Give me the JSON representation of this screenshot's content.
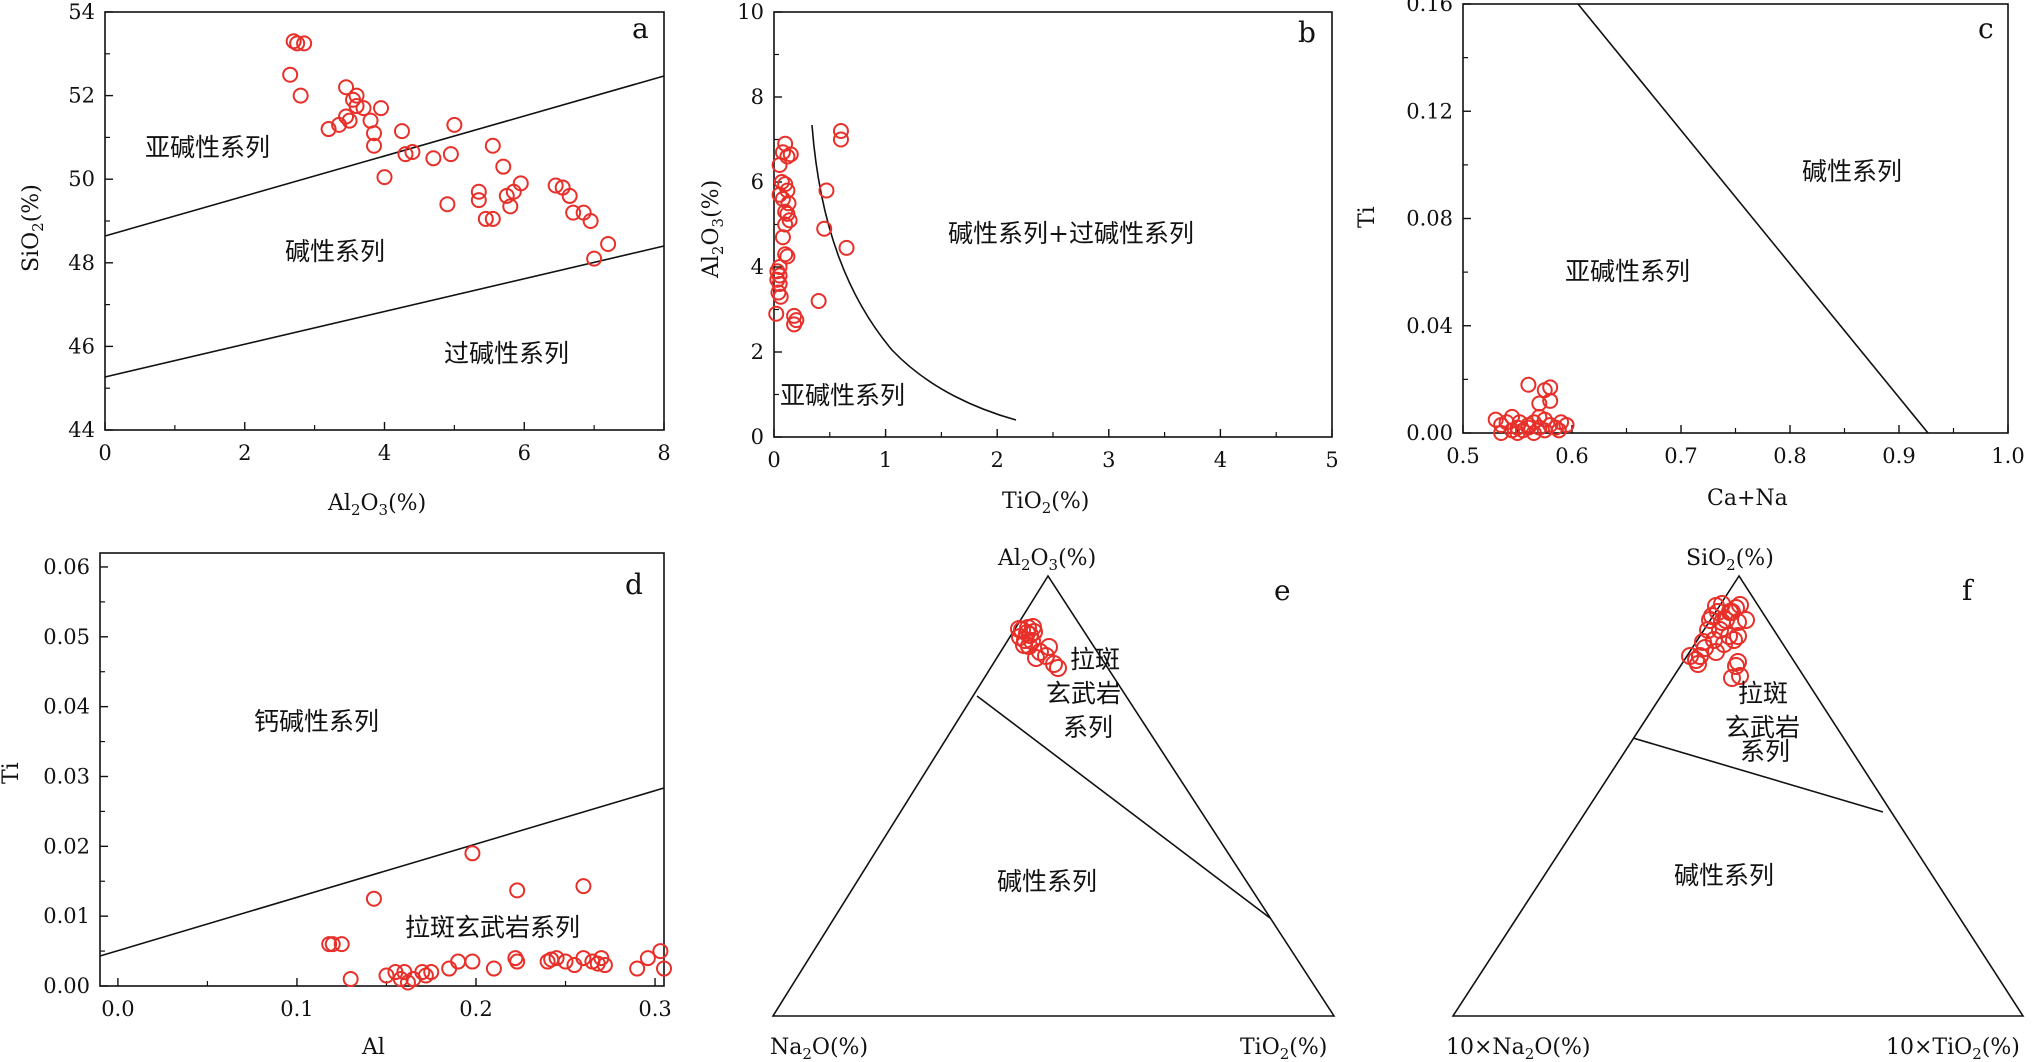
{
  "chart_data": [
    {
      "id": "a",
      "type": "scatter",
      "letter": "a",
      "xlabel": "Al2O3(%)",
      "ylabel": "SiO2(%)",
      "xlim": [
        0,
        8
      ],
      "ylim": [
        44,
        54
      ],
      "xticks": [
        "0",
        "2",
        "4",
        "6",
        "8"
      ],
      "yticks": [
        "44",
        "46",
        "48",
        "50",
        "52",
        "54"
      ],
      "regions": [
        "亚碱性系列",
        "碱性系列",
        "过碱性系列"
      ],
      "points": [
        [
          2.7,
          53.3
        ],
        [
          2.75,
          53.25
        ],
        [
          2.85,
          53.25
        ],
        [
          2.65,
          52.5
        ],
        [
          2.8,
          52.0
        ],
        [
          3.2,
          51.2
        ],
        [
          3.35,
          51.3
        ],
        [
          3.45,
          51.5
        ],
        [
          3.5,
          51.4
        ],
        [
          3.45,
          52.2
        ],
        [
          3.55,
          51.9
        ],
        [
          3.6,
          52.0
        ],
        [
          3.6,
          51.75
        ],
        [
          3.7,
          51.7
        ],
        [
          3.8,
          51.4
        ],
        [
          3.85,
          51.1
        ],
        [
          3.85,
          50.8
        ],
        [
          3.95,
          51.7
        ],
        [
          4.0,
          50.05
        ],
        [
          4.25,
          51.15
        ],
        [
          4.3,
          50.6
        ],
        [
          4.4,
          50.65
        ],
        [
          4.7,
          50.5
        ],
        [
          4.95,
          50.6
        ],
        [
          5.0,
          51.3
        ],
        [
          4.9,
          49.4
        ],
        [
          5.35,
          49.7
        ],
        [
          5.35,
          49.5
        ],
        [
          5.45,
          49.05
        ],
        [
          5.55,
          49.05
        ],
        [
          5.55,
          50.8
        ],
        [
          5.7,
          50.3
        ],
        [
          5.75,
          49.6
        ],
        [
          5.8,
          49.35
        ],
        [
          5.85,
          49.7
        ],
        [
          5.95,
          49.9
        ],
        [
          6.45,
          49.85
        ],
        [
          6.55,
          49.8
        ],
        [
          6.65,
          49.6
        ],
        [
          6.7,
          49.2
        ],
        [
          6.85,
          49.2
        ],
        [
          6.95,
          49.0
        ],
        [
          7.0,
          48.1
        ],
        [
          7.2,
          48.45
        ]
      ]
    },
    {
      "id": "b",
      "type": "scatter",
      "letter": "b",
      "xlabel": "TiO2(%)",
      "ylabel": "Al2O3(%)",
      "xlim": [
        0,
        5
      ],
      "ylim": [
        0,
        10
      ],
      "xticks": [
        "0",
        "1",
        "2",
        "3",
        "4",
        "5"
      ],
      "yticks": [
        "0",
        "2",
        "4",
        "6",
        "8",
        "10"
      ],
      "regions": [
        "碱性系列+过碱性系列",
        "亚碱性系列"
      ],
      "points": [
        [
          0.05,
          6.4
        ],
        [
          0.08,
          6.7
        ],
        [
          0.1,
          6.9
        ],
        [
          0.12,
          6.6
        ],
        [
          0.15,
          6.65
        ],
        [
          0.1,
          5.95
        ],
        [
          0.12,
          5.8
        ],
        [
          0.08,
          5.6
        ],
        [
          0.1,
          5.3
        ],
        [
          0.12,
          5.25
        ],
        [
          0.1,
          5.0
        ],
        [
          0.08,
          4.7
        ],
        [
          0.1,
          4.3
        ],
        [
          0.12,
          4.25
        ],
        [
          0.05,
          4.0
        ],
        [
          0.05,
          3.8
        ],
        [
          0.03,
          3.7
        ],
        [
          0.05,
          3.6
        ],
        [
          0.04,
          3.4
        ],
        [
          0.02,
          2.9
        ],
        [
          0.18,
          2.85
        ],
        [
          0.2,
          2.75
        ],
        [
          0.18,
          2.65
        ],
        [
          0.4,
          3.2
        ],
        [
          0.45,
          4.9
        ],
        [
          0.47,
          5.8
        ],
        [
          0.6,
          7.2
        ],
        [
          0.6,
          7.0
        ],
        [
          0.65,
          4.45
        ],
        [
          0.05,
          5.7
        ],
        [
          0.07,
          6.0
        ],
        [
          0.13,
          5.5
        ],
        [
          0.14,
          5.1
        ],
        [
          0.06,
          3.3
        ],
        [
          0.03,
          3.9
        ]
      ]
    },
    {
      "id": "c",
      "type": "scatter",
      "letter": "c",
      "xlabel": "Ca+Na",
      "ylabel": "Ti",
      "xlim": [
        0.5,
        1.0
      ],
      "ylim": [
        0,
        0.16
      ],
      "xticks": [
        "0.5",
        "0.6",
        "0.7",
        "0.8",
        "0.9",
        "1.0"
      ],
      "yticks": [
        "0.00",
        "0.04",
        "0.08",
        "0.12",
        "0.16"
      ],
      "regions": [
        "碱性系列",
        "亚碱性系列"
      ],
      "points": [
        [
          0.53,
          0.005
        ],
        [
          0.535,
          0.003
        ],
        [
          0.54,
          0.004
        ],
        [
          0.545,
          0.006
        ],
        [
          0.55,
          0.002
        ],
        [
          0.555,
          0.001
        ],
        [
          0.56,
          0.003
        ],
        [
          0.565,
          0.004
        ],
        [
          0.57,
          0.002
        ],
        [
          0.575,
          0.005
        ],
        [
          0.58,
          0.003
        ],
        [
          0.585,
          0.002
        ],
        [
          0.59,
          0.004
        ],
        [
          0.595,
          0.003
        ],
        [
          0.56,
          0.018
        ],
        [
          0.575,
          0.016
        ],
        [
          0.58,
          0.017
        ],
        [
          0.57,
          0.011
        ],
        [
          0.58,
          0.012
        ],
        [
          0.545,
          0.001
        ],
        [
          0.55,
          0.0
        ],
        [
          0.565,
          0.0
        ],
        [
          0.575,
          0.001
        ],
        [
          0.588,
          0.001
        ],
        [
          0.535,
          0.0
        ],
        [
          0.57,
          0.006
        ],
        [
          0.56,
          0.002
        ],
        [
          0.552,
          0.004
        ]
      ]
    },
    {
      "id": "d",
      "type": "scatter",
      "letter": "d",
      "xlabel": "Al",
      "ylabel": "Ti",
      "xlim": [
        -0.01,
        0.305
      ],
      "ylim": [
        0,
        0.062
      ],
      "xticks": [
        "0.0",
        "0.1",
        "0.2",
        "0.3"
      ],
      "yticks": [
        "0.00",
        "0.01",
        "0.02",
        "0.03",
        "0.04",
        "0.05",
        "0.06"
      ],
      "regions": [
        "钙碱性系列",
        "拉斑玄武岩系列"
      ],
      "points": [
        [
          0.12,
          0.006
        ],
        [
          0.125,
          0.006
        ],
        [
          0.118,
          0.006
        ],
        [
          0.13,
          0.001
        ],
        [
          0.143,
          0.0125
        ],
        [
          0.15,
          0.0015
        ],
        [
          0.155,
          0.002
        ],
        [
          0.158,
          0.001
        ],
        [
          0.16,
          0.002
        ],
        [
          0.162,
          0.0005
        ],
        [
          0.165,
          0.001
        ],
        [
          0.17,
          0.002
        ],
        [
          0.172,
          0.0015
        ],
        [
          0.175,
          0.002
        ],
        [
          0.185,
          0.0025
        ],
        [
          0.19,
          0.0035
        ],
        [
          0.198,
          0.0035
        ],
        [
          0.198,
          0.019
        ],
        [
          0.21,
          0.0025
        ],
        [
          0.222,
          0.004
        ],
        [
          0.223,
          0.0035
        ],
        [
          0.223,
          0.0137
        ],
        [
          0.24,
          0.0035
        ],
        [
          0.245,
          0.004
        ],
        [
          0.25,
          0.0035
        ],
        [
          0.255,
          0.003
        ],
        [
          0.26,
          0.004
        ],
        [
          0.26,
          0.0143
        ],
        [
          0.265,
          0.0035
        ],
        [
          0.27,
          0.004
        ],
        [
          0.272,
          0.003
        ],
        [
          0.29,
          0.0025
        ],
        [
          0.296,
          0.004
        ],
        [
          0.303,
          0.005
        ],
        [
          0.305,
          0.0025
        ],
        [
          0.242,
          0.0038
        ],
        [
          0.268,
          0.0032
        ]
      ]
    },
    {
      "id": "e",
      "type": "ternary",
      "letter": "e",
      "apex_top": "Al2O3(%)",
      "apex_left": "Na2O(%)",
      "apex_right": "TiO2(%)",
      "regions": [
        "拉斑玄武岩系列",
        "碱性系列"
      ]
    },
    {
      "id": "f",
      "type": "ternary",
      "letter": "f",
      "apex_top": "SiO2(%)",
      "apex_left": "10×Na2O(%)",
      "apex_right": "10×TiO2(%)",
      "regions": [
        "拉斑玄武岩系列",
        "碱性系列"
      ]
    }
  ]
}
